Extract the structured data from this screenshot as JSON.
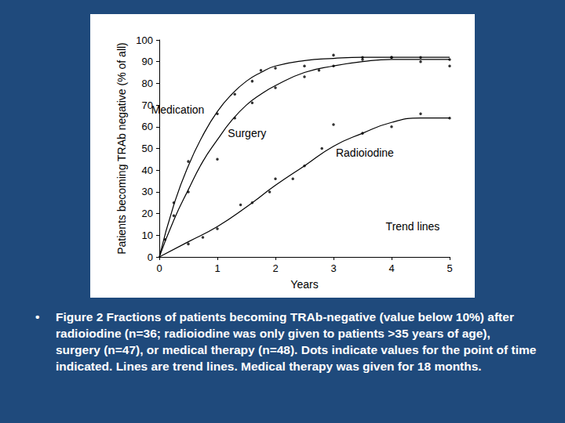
{
  "chart_data": {
    "type": "line",
    "x_label": "Years",
    "y_label": "Patients becoming TRAb negative (% of all)",
    "xlim": [
      0,
      5
    ],
    "xticks": [
      0,
      1,
      2,
      3,
      4,
      5
    ],
    "ylim": [
      0,
      100
    ],
    "yticks": [
      0,
      10,
      20,
      30,
      40,
      50,
      60,
      70,
      80,
      90,
      100
    ],
    "grid": false,
    "series": [
      {
        "name": "Medication",
        "color": "#000000",
        "marker": "circle",
        "line_style": "solid",
        "x": [
          0.25,
          0.5,
          1,
          1.3,
          1.6,
          1.75,
          2,
          2.5,
          3,
          3.5,
          4,
          4.5,
          5
        ],
        "values": [
          25,
          44,
          66,
          75,
          81,
          86,
          87,
          88,
          93,
          92,
          92,
          92,
          88
        ],
        "trend": {
          "x": [
            0,
            0.25,
            0.5,
            0.75,
            1,
            1.25,
            1.5,
            1.75,
            2,
            2.5,
            3,
            3.5,
            4,
            4.5,
            5
          ],
          "values": [
            0,
            24,
            42,
            56,
            67,
            75,
            81,
            85,
            88,
            90.5,
            91.5,
            92,
            92,
            92,
            92
          ]
        }
      },
      {
        "name": "Surgery",
        "color": "#000000",
        "marker": "circle",
        "line_style": "solid",
        "x": [
          0.1,
          0.25,
          0.5,
          1,
          1.3,
          1.6,
          2,
          2.5,
          2.75,
          3,
          3.5,
          4,
          4.5,
          5
        ],
        "values": [
          8,
          19,
          30,
          45,
          64,
          71,
          78,
          83,
          86,
          88,
          91,
          92,
          90,
          91
        ],
        "trend": {
          "x": [
            0,
            0.25,
            0.5,
            0.75,
            1,
            1.25,
            1.5,
            1.75,
            2,
            2.5,
            3,
            3.5,
            4,
            4.5,
            5
          ],
          "values": [
            0,
            17,
            31,
            44,
            54,
            63,
            70,
            75,
            79,
            85,
            88,
            90,
            91,
            91,
            91
          ]
        }
      },
      {
        "name": "Radioiodine",
        "color": "#000000",
        "marker": "circle",
        "line_style": "solid",
        "x": [
          0.5,
          0.75,
          1,
          1.4,
          1.6,
          1.9,
          2,
          2.3,
          2.5,
          2.8,
          3,
          3.5,
          4,
          4.5,
          5
        ],
        "values": [
          6,
          9,
          13,
          24,
          25,
          30,
          36,
          36,
          42,
          50,
          61,
          57,
          60,
          66,
          64
        ],
        "trend": {
          "x": [
            0,
            0.5,
            1,
            1.5,
            2,
            2.5,
            3,
            3.5,
            4,
            4.5,
            5
          ],
          "values": [
            0,
            7,
            14,
            23,
            33,
            42,
            51,
            57,
            62,
            64,
            64
          ]
        }
      }
    ],
    "annotations": [
      {
        "text": "Medication",
        "x": -0.14,
        "y": 68
      },
      {
        "text": "Surgery",
        "x": 1.18,
        "y": 57
      },
      {
        "text": "Radioiodine",
        "x": 3.04,
        "y": 48
      },
      {
        "text": "Trend lines",
        "x": 3.9,
        "y": 14
      }
    ]
  },
  "caption": {
    "bullet": "•",
    "text": "Figure 2  Fractions of patients becoming TRAb-negative (value below 10%) after radioiodine (n=36; radioiodine was only given to patients >35 years of age), surgery (n=47), or medical therapy (n=48). Dots indicate values for the point of time indicated. Lines are trend lines. Medical therapy was given for 18 months."
  }
}
